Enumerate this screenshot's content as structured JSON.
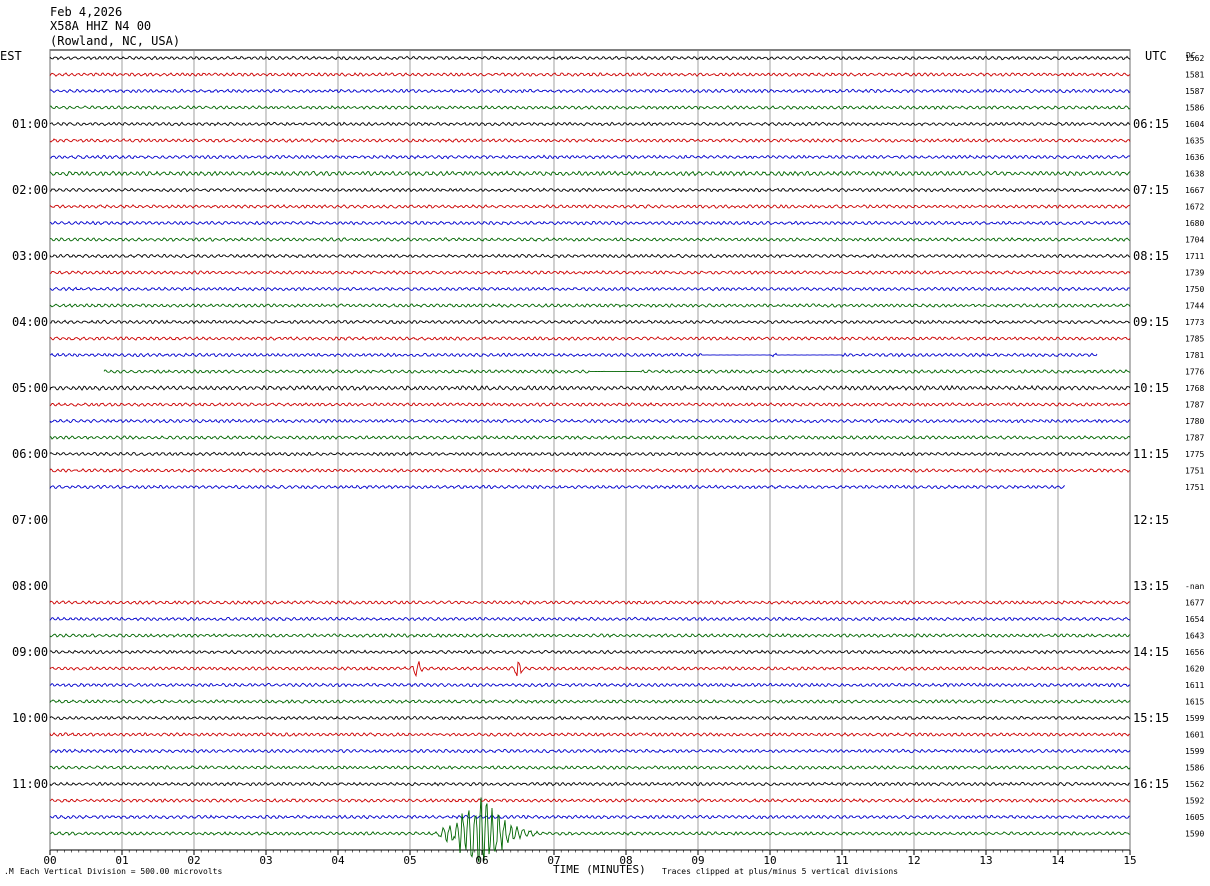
{
  "header": {
    "line1": "Feb 4,2026",
    "line2": "X58A HHZ N4 00",
    "line3": "(Rowland, NC, USA)"
  },
  "left_zone_label": "EST",
  "right_zone_label": "UTC",
  "rms_header": "DC",
  "footer": {
    "scale_note": "Each Vertical Division =  500.00 microvolts",
    "axis_title": "TIME (MINUTES)",
    "clip_note": "Traces clipped at plus/minus 5 vertical divisions"
  },
  "colors": {
    "black": "#000000",
    "red": "#cc0000",
    "blue": "#0000cc",
    "green": "#006600",
    "grid": "#888888"
  },
  "chart_data": {
    "type": "line",
    "title": "",
    "xlabel": "TIME (MINUTES)",
    "ylabel": "",
    "xlim": [
      0,
      15
    ],
    "x_ticks": [
      "00",
      "01",
      "02",
      "03",
      "04",
      "05",
      "06",
      "07",
      "08",
      "09",
      "10",
      "11",
      "12",
      "13",
      "14",
      "15"
    ],
    "row_count": 48,
    "left_hour_labels": [
      {
        "row": 4,
        "label": "01:00"
      },
      {
        "row": 8,
        "label": "02:00"
      },
      {
        "row": 12,
        "label": "03:00"
      },
      {
        "row": 16,
        "label": "04:00"
      },
      {
        "row": 20,
        "label": "05:00"
      },
      {
        "row": 24,
        "label": "06:00"
      },
      {
        "row": 28,
        "label": "07:00"
      },
      {
        "row": 32,
        "label": "08:00"
      },
      {
        "row": 36,
        "label": "09:00"
      },
      {
        "row": 40,
        "label": "10:00"
      },
      {
        "row": 44,
        "label": "11:00"
      }
    ],
    "right_hour_labels": [
      {
        "row": 4,
        "label": "06:15"
      },
      {
        "row": 8,
        "label": "07:15"
      },
      {
        "row": 12,
        "label": "08:15"
      },
      {
        "row": 16,
        "label": "09:15"
      },
      {
        "row": 20,
        "label": "10:15"
      },
      {
        "row": 24,
        "label": "11:15"
      },
      {
        "row": 28,
        "label": "12:15"
      },
      {
        "row": 32,
        "label": "13:15"
      },
      {
        "row": 36,
        "label": "14:15"
      },
      {
        "row": 40,
        "label": "15:15"
      },
      {
        "row": 44,
        "label": "16:15"
      }
    ],
    "rows": [
      {
        "row": 0,
        "color": "black",
        "start": 0,
        "end": 15,
        "amp": 1,
        "value": "1562"
      },
      {
        "row": 1,
        "color": "red",
        "start": 0,
        "end": 15,
        "amp": 1,
        "value": "1581"
      },
      {
        "row": 2,
        "color": "blue",
        "start": 0,
        "end": 15,
        "amp": 1,
        "value": "1587"
      },
      {
        "row": 3,
        "color": "green",
        "start": 0,
        "end": 15,
        "amp": 1,
        "value": "1586"
      },
      {
        "row": 4,
        "color": "black",
        "start": 0,
        "end": 15,
        "amp": 1,
        "value": "1604"
      },
      {
        "row": 5,
        "color": "red",
        "start": 0,
        "end": 15,
        "amp": 1,
        "value": "1635"
      },
      {
        "row": 6,
        "color": "blue",
        "start": 0,
        "end": 15,
        "amp": 1,
        "value": "1636"
      },
      {
        "row": 7,
        "color": "green",
        "start": 0,
        "end": 15,
        "amp": 1.3,
        "value": "1638"
      },
      {
        "row": 8,
        "color": "black",
        "start": 0,
        "end": 15,
        "amp": 1,
        "value": "1667"
      },
      {
        "row": 9,
        "color": "red",
        "start": 0,
        "end": 15,
        "amp": 1,
        "value": "1672"
      },
      {
        "row": 10,
        "color": "blue",
        "start": 0,
        "end": 15,
        "amp": 1,
        "value": "1680"
      },
      {
        "row": 11,
        "color": "green",
        "start": 0,
        "end": 15,
        "amp": 1,
        "value": "1704"
      },
      {
        "row": 12,
        "color": "black",
        "start": 0,
        "end": 15,
        "amp": 1,
        "value": "1711"
      },
      {
        "row": 13,
        "color": "red",
        "start": 0,
        "end": 15,
        "amp": 1,
        "value": "1739"
      },
      {
        "row": 14,
        "color": "blue",
        "start": 0,
        "end": 15,
        "amp": 1,
        "value": "1750"
      },
      {
        "row": 15,
        "color": "green",
        "start": 0,
        "end": 15,
        "amp": 1,
        "value": "1744"
      },
      {
        "row": 16,
        "color": "black",
        "start": 0,
        "end": 15,
        "amp": 1,
        "value": "1773"
      },
      {
        "row": 17,
        "color": "red",
        "start": 0,
        "end": 15,
        "amp": 1,
        "value": "1785"
      },
      {
        "row": 18,
        "color": "blue",
        "start": 0,
        "end": 14.55,
        "amp": 1,
        "value": "1781",
        "flat": [
          [
            9.05,
            10.0
          ],
          [
            10.1,
            11.0
          ]
        ]
      },
      {
        "row": 19,
        "color": "green",
        "start": 0.75,
        "end": 15,
        "amp": 1,
        "value": "1776",
        "flat": [
          [
            7.5,
            8.2
          ]
        ]
      },
      {
        "row": 20,
        "color": "black",
        "start": 0,
        "end": 15,
        "amp": 1.3,
        "value": "1768"
      },
      {
        "row": 21,
        "color": "red",
        "start": 0,
        "end": 15,
        "amp": 1,
        "value": "1787"
      },
      {
        "row": 22,
        "color": "blue",
        "start": 0,
        "end": 15,
        "amp": 1,
        "value": "1780"
      },
      {
        "row": 23,
        "color": "green",
        "start": 0,
        "end": 15,
        "amp": 1,
        "value": "1787"
      },
      {
        "row": 24,
        "color": "black",
        "start": 0,
        "end": 15,
        "amp": 1,
        "value": "1775"
      },
      {
        "row": 25,
        "color": "red",
        "start": 0,
        "end": 15,
        "amp": 1,
        "value": "1751"
      },
      {
        "row": 26,
        "color": "blue",
        "start": 0,
        "end": 14.1,
        "amp": 1,
        "value": "1751"
      },
      {
        "row": 32,
        "color": "green",
        "start": 0,
        "end": 0,
        "amp": 0,
        "value": "-nan"
      },
      {
        "row": 33,
        "color": "red",
        "start": 0,
        "end": 15,
        "amp": 1,
        "value": "1677"
      },
      {
        "row": 34,
        "color": "blue",
        "start": 0,
        "end": 15,
        "amp": 1,
        "value": "1654"
      },
      {
        "row": 35,
        "color": "green",
        "start": 0,
        "end": 15,
        "amp": 1,
        "value": "1643"
      },
      {
        "row": 36,
        "color": "black",
        "start": 0,
        "end": 15,
        "amp": 1,
        "value": "1656"
      },
      {
        "row": 37,
        "color": "red",
        "start": 0,
        "end": 15,
        "amp": 1,
        "value": "1620",
        "spikes": [
          [
            5.1,
            1.6
          ],
          [
            6.5,
            1.8
          ]
        ]
      },
      {
        "row": 38,
        "color": "blue",
        "start": 0,
        "end": 15,
        "amp": 1,
        "value": "1611"
      },
      {
        "row": 39,
        "color": "green",
        "start": 0,
        "end": 15,
        "amp": 1,
        "value": "1615"
      },
      {
        "row": 40,
        "color": "black",
        "start": 0,
        "end": 15,
        "amp": 1,
        "value": "1599"
      },
      {
        "row": 41,
        "color": "red",
        "start": 0,
        "end": 15,
        "amp": 1,
        "value": "1601"
      },
      {
        "row": 42,
        "color": "blue",
        "start": 0,
        "end": 15,
        "amp": 1,
        "value": "1599"
      },
      {
        "row": 43,
        "color": "green",
        "start": 0,
        "end": 15,
        "amp": 1,
        "value": "1586"
      },
      {
        "row": 44,
        "color": "black",
        "start": 0,
        "end": 15,
        "amp": 1,
        "value": "1562"
      },
      {
        "row": 45,
        "color": "red",
        "start": 0,
        "end": 15,
        "amp": 1,
        "value": "1592"
      },
      {
        "row": 46,
        "color": "blue",
        "start": 0,
        "end": 15,
        "amp": 1,
        "value": "1605"
      },
      {
        "row": 47,
        "color": "green",
        "start": 0,
        "end": 15,
        "amp": 1,
        "value": "1590",
        "event": {
          "start": 5.3,
          "peak": 6.05,
          "end": 7.0,
          "max_amp": 5
        }
      }
    ]
  }
}
